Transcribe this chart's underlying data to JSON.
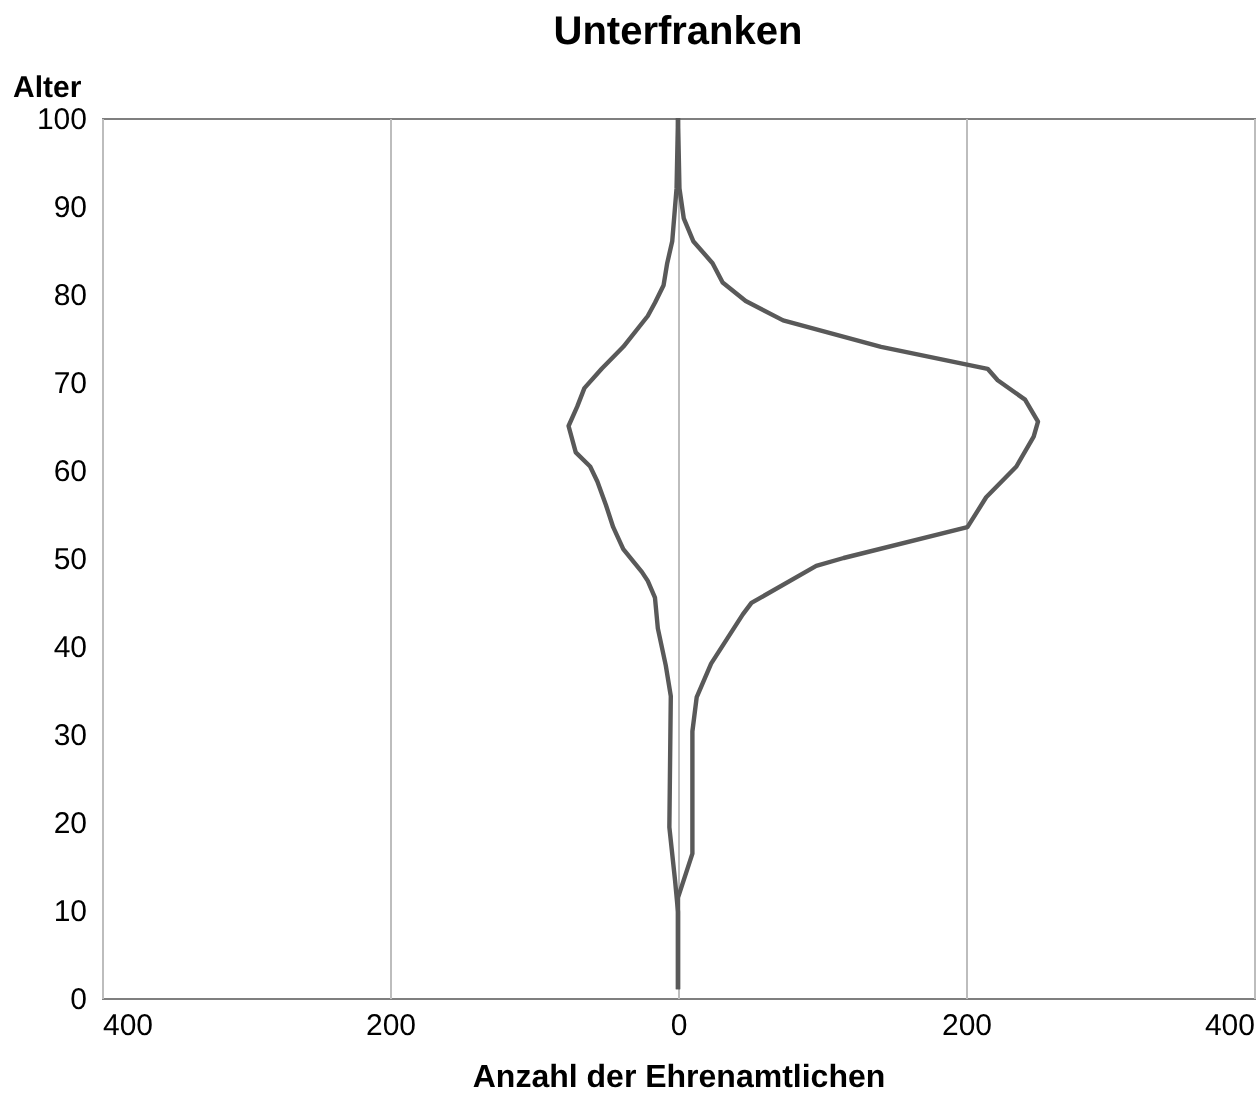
{
  "chart_data": {
    "type": "line",
    "title": "Unterfranken",
    "xlabel": "Anzahl der Ehrenamtlichen",
    "ylabel": "Alter",
    "xlim": [
      -400,
      400
    ],
    "xticks": [
      {
        "value": -400,
        "label": "400"
      },
      {
        "value": -200,
        "label": "200"
      },
      0,
      200,
      400
    ],
    "ylim": [
      0,
      100
    ],
    "yticks": [
      0,
      10,
      20,
      30,
      40,
      50,
      60,
      70,
      80,
      90,
      100
    ],
    "grid": "x",
    "line_style": "solid",
    "marker": "none",
    "series": [
      {
        "color": "#595959",
        "x": [
          0,
          0,
          -2,
          -6,
          -5,
          -8.5,
          -14,
          -16,
          -21,
          -25,
          -38,
          -45,
          -50,
          -56,
          -61,
          -71,
          -76,
          -70,
          -65,
          -53,
          -38,
          -21,
          -16,
          -10,
          -7.5,
          -4,
          -1,
          0
        ],
        "values": [
          1,
          9.8,
          13.3,
          19.4,
          34.3,
          37.8,
          42,
          45.5,
          47.4,
          48.4,
          51,
          53.5,
          56,
          58.7,
          60.4,
          62,
          65,
          67.2,
          69.3,
          71.5,
          74,
          77.5,
          79,
          81,
          83.5,
          86,
          92,
          100
        ]
      },
      {
        "color": "#595959",
        "x": [
          0,
          0,
          10,
          10,
          10,
          13,
          23,
          45,
          51,
          96,
          115,
          201,
          214,
          235,
          247,
          250,
          241,
          222,
          215,
          141,
          73,
          47,
          31,
          24,
          10.6,
          4,
          1,
          0
        ],
        "values": [
          1,
          11.4,
          16.4,
          20,
          30.3,
          34.2,
          38,
          43.6,
          44.9,
          49.1,
          50,
          53.5,
          56.9,
          60.4,
          63.8,
          65.5,
          68,
          70.2,
          71.5,
          74,
          77,
          79.2,
          81.3,
          83.5,
          86,
          88.6,
          92,
          100
        ]
      }
    ]
  }
}
